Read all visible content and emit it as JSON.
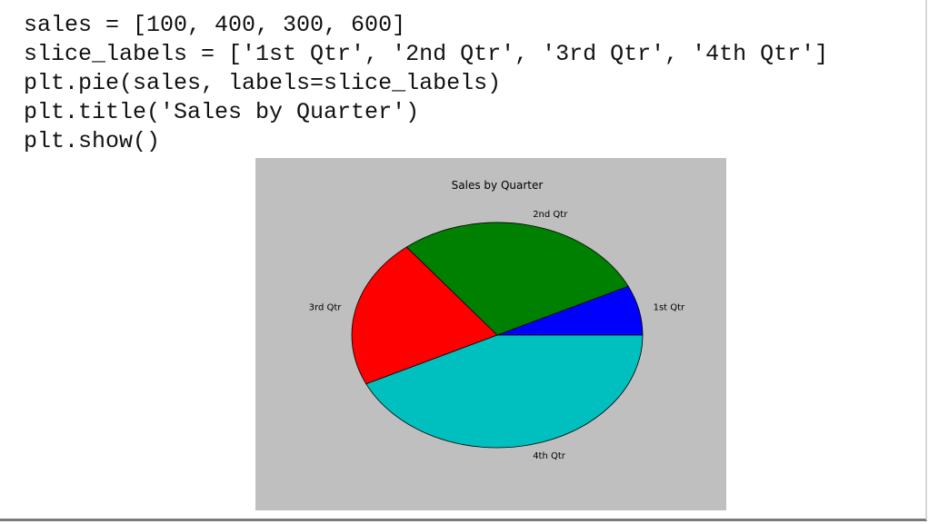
{
  "code": {
    "lines": [
      "sales = [100, 400, 300, 600]",
      "slice_labels = ['1st Qtr', '2nd Qtr', '3rd Qtr', '4th Qtr']",
      "plt.pie(sales, labels=slice_labels)",
      "plt.title('Sales by Quarter')",
      "plt.show()"
    ]
  },
  "chart_data": {
    "type": "pie",
    "title": "Sales by Quarter",
    "labels": [
      "1st Qtr",
      "2nd Qtr",
      "3rd Qtr",
      "4th Qtr"
    ],
    "values": [
      100,
      400,
      300,
      600
    ],
    "colors": [
      "#0000ff",
      "#008000",
      "#ff0000",
      "#00bfbf"
    ],
    "start_angle_deg": 0,
    "direction": "counterclockwise",
    "background_color": "#bfbfbf"
  }
}
